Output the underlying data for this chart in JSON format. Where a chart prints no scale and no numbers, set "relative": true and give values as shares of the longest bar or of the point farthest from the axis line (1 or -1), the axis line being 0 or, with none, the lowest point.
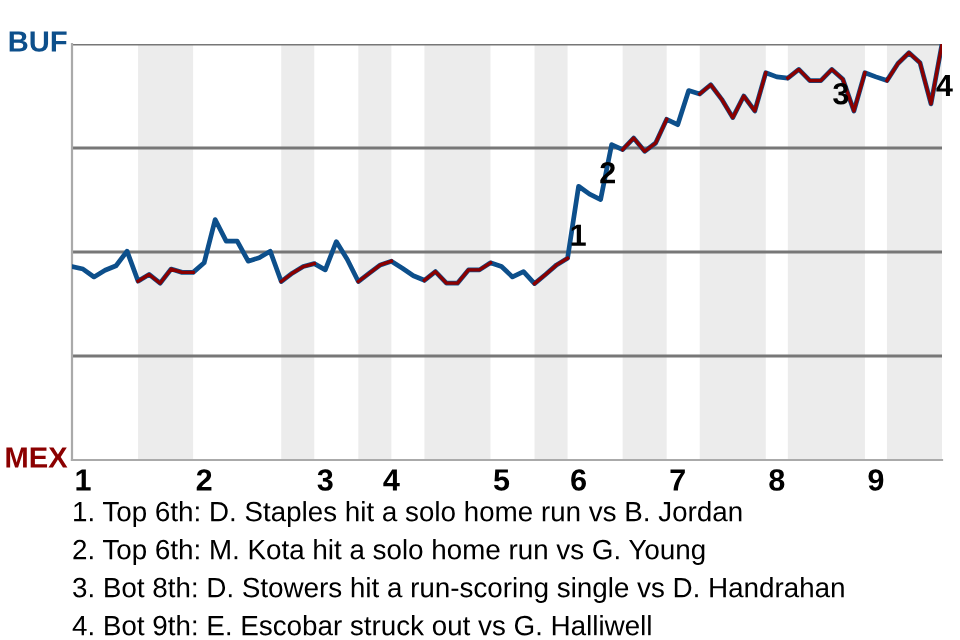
{
  "chart_data": {
    "type": "line",
    "relative": true,
    "categories": [
      null,
      "1",
      null,
      null,
      null,
      null,
      null,
      null,
      null,
      null,
      null,
      null,
      "2",
      null,
      null,
      null,
      null,
      null,
      null,
      null,
      null,
      null,
      null,
      "3",
      null,
      null,
      null,
      null,
      null,
      "4",
      null,
      null,
      null,
      null,
      null,
      null,
      null,
      null,
      null,
      "5",
      null,
      null,
      null,
      null,
      null,
      null,
      "6",
      null,
      null,
      null,
      null,
      null,
      null,
      null,
      null,
      "7",
      null,
      null,
      null,
      null,
      null,
      null,
      null,
      null,
      "8",
      null,
      null,
      null,
      null,
      null,
      null,
      null,
      null,
      "9",
      null,
      null,
      null,
      null,
      null,
      null
    ],
    "series": [
      {
        "color": "#0d4f8b",
        "values": [
          0.465,
          0.459,
          0.44,
          0.456,
          0.467,
          0.502,
          0.43,
          0.446,
          0.425,
          0.459,
          0.451,
          0.451,
          0.474,
          0.578,
          0.526,
          0.526,
          0.478,
          0.486,
          0.502,
          0.429,
          0.449,
          0.465,
          0.472,
          0.457,
          0.525,
          0.482,
          0.429,
          0.449,
          0.469,
          0.478,
          0.461,
          0.443,
          0.432,
          0.453,
          0.425,
          0.425,
          0.457,
          0.457,
          0.474,
          0.465,
          0.44,
          0.453,
          0.424,
          0.446,
          0.469,
          0.485,
          0.658,
          0.639,
          0.626,
          0.758,
          0.746,
          0.774,
          0.742,
          0.762,
          0.819,
          0.806,
          0.888,
          0.88,
          0.902,
          0.867,
          0.823,
          0.875,
          0.839,
          0.931,
          0.921,
          0.918,
          0.939,
          0.912,
          0.912,
          0.939,
          0.915,
          0.839,
          0.931,
          0.921,
          0.912,
          0.953,
          0.979,
          0.955,
          0.856,
          1
        ]
      },
      {
        "color": "#8b0000",
        "values": [
          null,
          null,
          null,
          null,
          null,
          null,
          0.43,
          0.446,
          0.425,
          0.459,
          0.451,
          0.451,
          null,
          null,
          null,
          null,
          null,
          null,
          null,
          0.429,
          0.449,
          0.465,
          0.472,
          null,
          null,
          null,
          0.429,
          0.449,
          0.469,
          0.478,
          null,
          null,
          0.432,
          0.453,
          0.425,
          0.425,
          0.457,
          0.457,
          0.474,
          null,
          null,
          null,
          0.424,
          0.446,
          0.469,
          0.485,
          null,
          null,
          null,
          null,
          0.746,
          0.774,
          0.742,
          0.762,
          0.819,
          null,
          null,
          0.88,
          0.902,
          0.867,
          0.823,
          0.875,
          0.839,
          0.931,
          null,
          0.918,
          0.939,
          0.912,
          0.912,
          0.939,
          0.915,
          0.839,
          0.931,
          null,
          0.912,
          0.953,
          0.979,
          0.955,
          0.856,
          1
        ]
      }
    ],
    "grid": "y",
    "annotations": [
      "BUF",
      "MEX",
      "1",
      "2",
      "3",
      "4",
      "1. Top 6th: D. Staples hit a solo home run vs B. Jordan",
      "2. Top 6th: M. Kota hit a solo home run vs G. Young",
      "3. Bot 8th: D. Stowers hit a run-scoring single vs D. Handrahan",
      "4. Bot 9th: E. Escobar struck out vs G. Halliwell"
    ],
    "marker": "none",
    "line_style": "solid"
  }
}
